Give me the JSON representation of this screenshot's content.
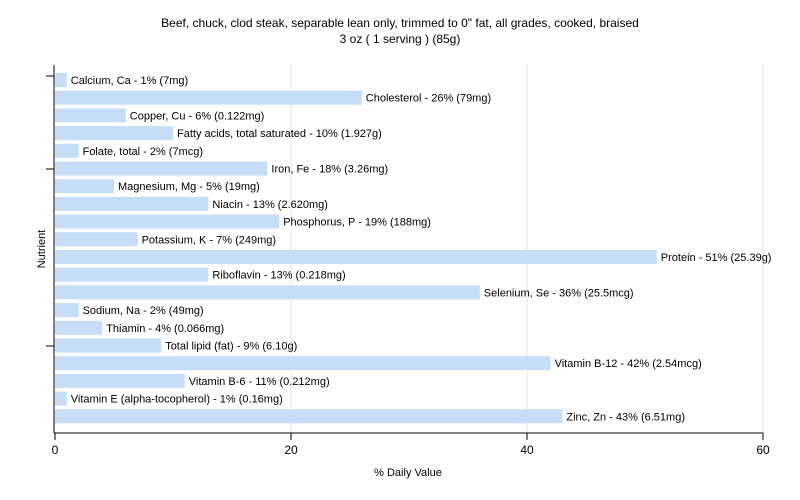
{
  "chart_data": {
    "type": "bar",
    "orientation": "horizontal",
    "title": "Beef, chuck, clod steak, separable lean only, trimmed to 0\" fat, all grades, cooked, braised",
    "subtitle": "3 oz ( 1 serving ) (85g)",
    "xlabel": "% Daily Value",
    "ylabel": "Nutrient",
    "xlim": [
      0,
      60
    ],
    "xticks": [
      0,
      20,
      40,
      60
    ],
    "grid": true,
    "bar_color": "#c6ddf7",
    "categories": [
      "Calcium, Ca",
      "Cholesterol",
      "Copper, Cu",
      "Fatty acids, total saturated",
      "Folate, total",
      "Iron, Fe",
      "Magnesium, Mg",
      "Niacin",
      "Phosphorus, P",
      "Potassium, K",
      "Protein",
      "Riboflavin",
      "Selenium, Se",
      "Sodium, Na",
      "Thiamin",
      "Total lipid (fat)",
      "Vitamin B-12",
      "Vitamin B-6",
      "Vitamin E (alpha-tocopherol)",
      "Zinc, Zn"
    ],
    "values": [
      1,
      26,
      6,
      10,
      2,
      18,
      5,
      13,
      19,
      7,
      51,
      13,
      36,
      2,
      4,
      9,
      42,
      11,
      1,
      43
    ],
    "labels": [
      "Calcium, Ca - 1% (7mg)",
      "Cholesterol - 26% (79mg)",
      "Copper, Cu - 6% (0.122mg)",
      "Fatty acids, total saturated - 10% (1.927g)",
      "Folate, total - 2% (7mcg)",
      "Iron, Fe - 18% (3.26mg)",
      "Magnesium, Mg - 5% (19mg)",
      "Niacin - 13% (2.620mg)",
      "Phosphorus, P - 19% (188mg)",
      "Potassium, K - 7% (249mg)",
      "Protein - 51% (25.39g)",
      "Riboflavin - 13% (0.218mg)",
      "Selenium, Se - 36% (25.5mcg)",
      "Sodium, Na - 2% (49mg)",
      "Thiamin - 4% (0.066mg)",
      "Total lipid (fat) - 9% (6.10g)",
      "Vitamin B-12 - 42% (2.54mcg)",
      "Vitamin B-6 - 11% (0.212mg)",
      "Vitamin E (alpha-tocopherol) - 1% (0.16mg)",
      "Zinc, Zn - 43% (6.51mg)"
    ]
  }
}
